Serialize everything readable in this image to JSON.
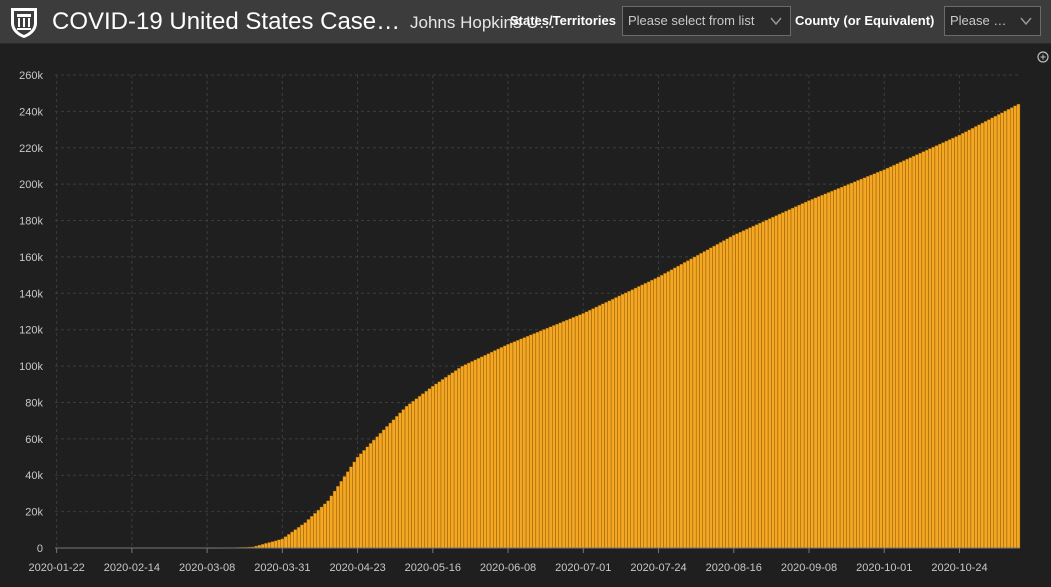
{
  "header": {
    "title": "COVID-19 United States Case…",
    "subtitle": "Johns Hopkins U…",
    "logo_icon": "university-shield-icon"
  },
  "filters": {
    "state": {
      "label": "States/Territories",
      "placeholder": "Please select from list"
    },
    "county": {
      "label": "County (or Equivalent)",
      "placeholder": "Please …"
    }
  },
  "colors": {
    "bar": "#f5a623",
    "bar_outline": "#7a4f00",
    "background": "#1f1f1f",
    "header": "#3c3c3c",
    "grid": "#3d3d3d",
    "axis_text": "#c8c8c8"
  },
  "chart_data": {
    "type": "bar",
    "title": "",
    "xlabel": "",
    "ylabel": "",
    "x_start": "2020-01-22",
    "x_end": "2020-11-11",
    "ylim": [
      0,
      260000
    ],
    "grid": true,
    "y_ticks": [
      "0",
      "20k",
      "40k",
      "60k",
      "80k",
      "100k",
      "120k",
      "140k",
      "160k",
      "180k",
      "200k",
      "220k",
      "240k",
      "260k"
    ],
    "x_ticks": [
      "2020-01-22",
      "2020-02-14",
      "2020-03-08",
      "2020-03-31",
      "2020-04-23",
      "2020-05-16",
      "2020-06-08",
      "2020-07-01",
      "2020-07-24",
      "2020-08-16",
      "2020-09-08",
      "2020-10-01",
      "2020-10-24"
    ],
    "points": [
      {
        "date": "2020-01-22",
        "value": 0
      },
      {
        "date": "2020-03-08",
        "value": 0
      },
      {
        "date": "2020-03-15",
        "value": 100
      },
      {
        "date": "2020-03-22",
        "value": 600
      },
      {
        "date": "2020-03-31",
        "value": 5000
      },
      {
        "date": "2020-04-07",
        "value": 14000
      },
      {
        "date": "2020-04-14",
        "value": 26000
      },
      {
        "date": "2020-04-23",
        "value": 50000
      },
      {
        "date": "2020-05-01",
        "value": 65000
      },
      {
        "date": "2020-05-08",
        "value": 78000
      },
      {
        "date": "2020-05-16",
        "value": 89000
      },
      {
        "date": "2020-05-25",
        "value": 100000
      },
      {
        "date": "2020-06-08",
        "value": 112000
      },
      {
        "date": "2020-07-01",
        "value": 129000
      },
      {
        "date": "2020-07-24",
        "value": 149000
      },
      {
        "date": "2020-08-16",
        "value": 172000
      },
      {
        "date": "2020-09-08",
        "value": 191000
      },
      {
        "date": "2020-10-01",
        "value": 208000
      },
      {
        "date": "2020-10-24",
        "value": 227000
      },
      {
        "date": "2020-11-11",
        "value": 244000
      }
    ]
  }
}
